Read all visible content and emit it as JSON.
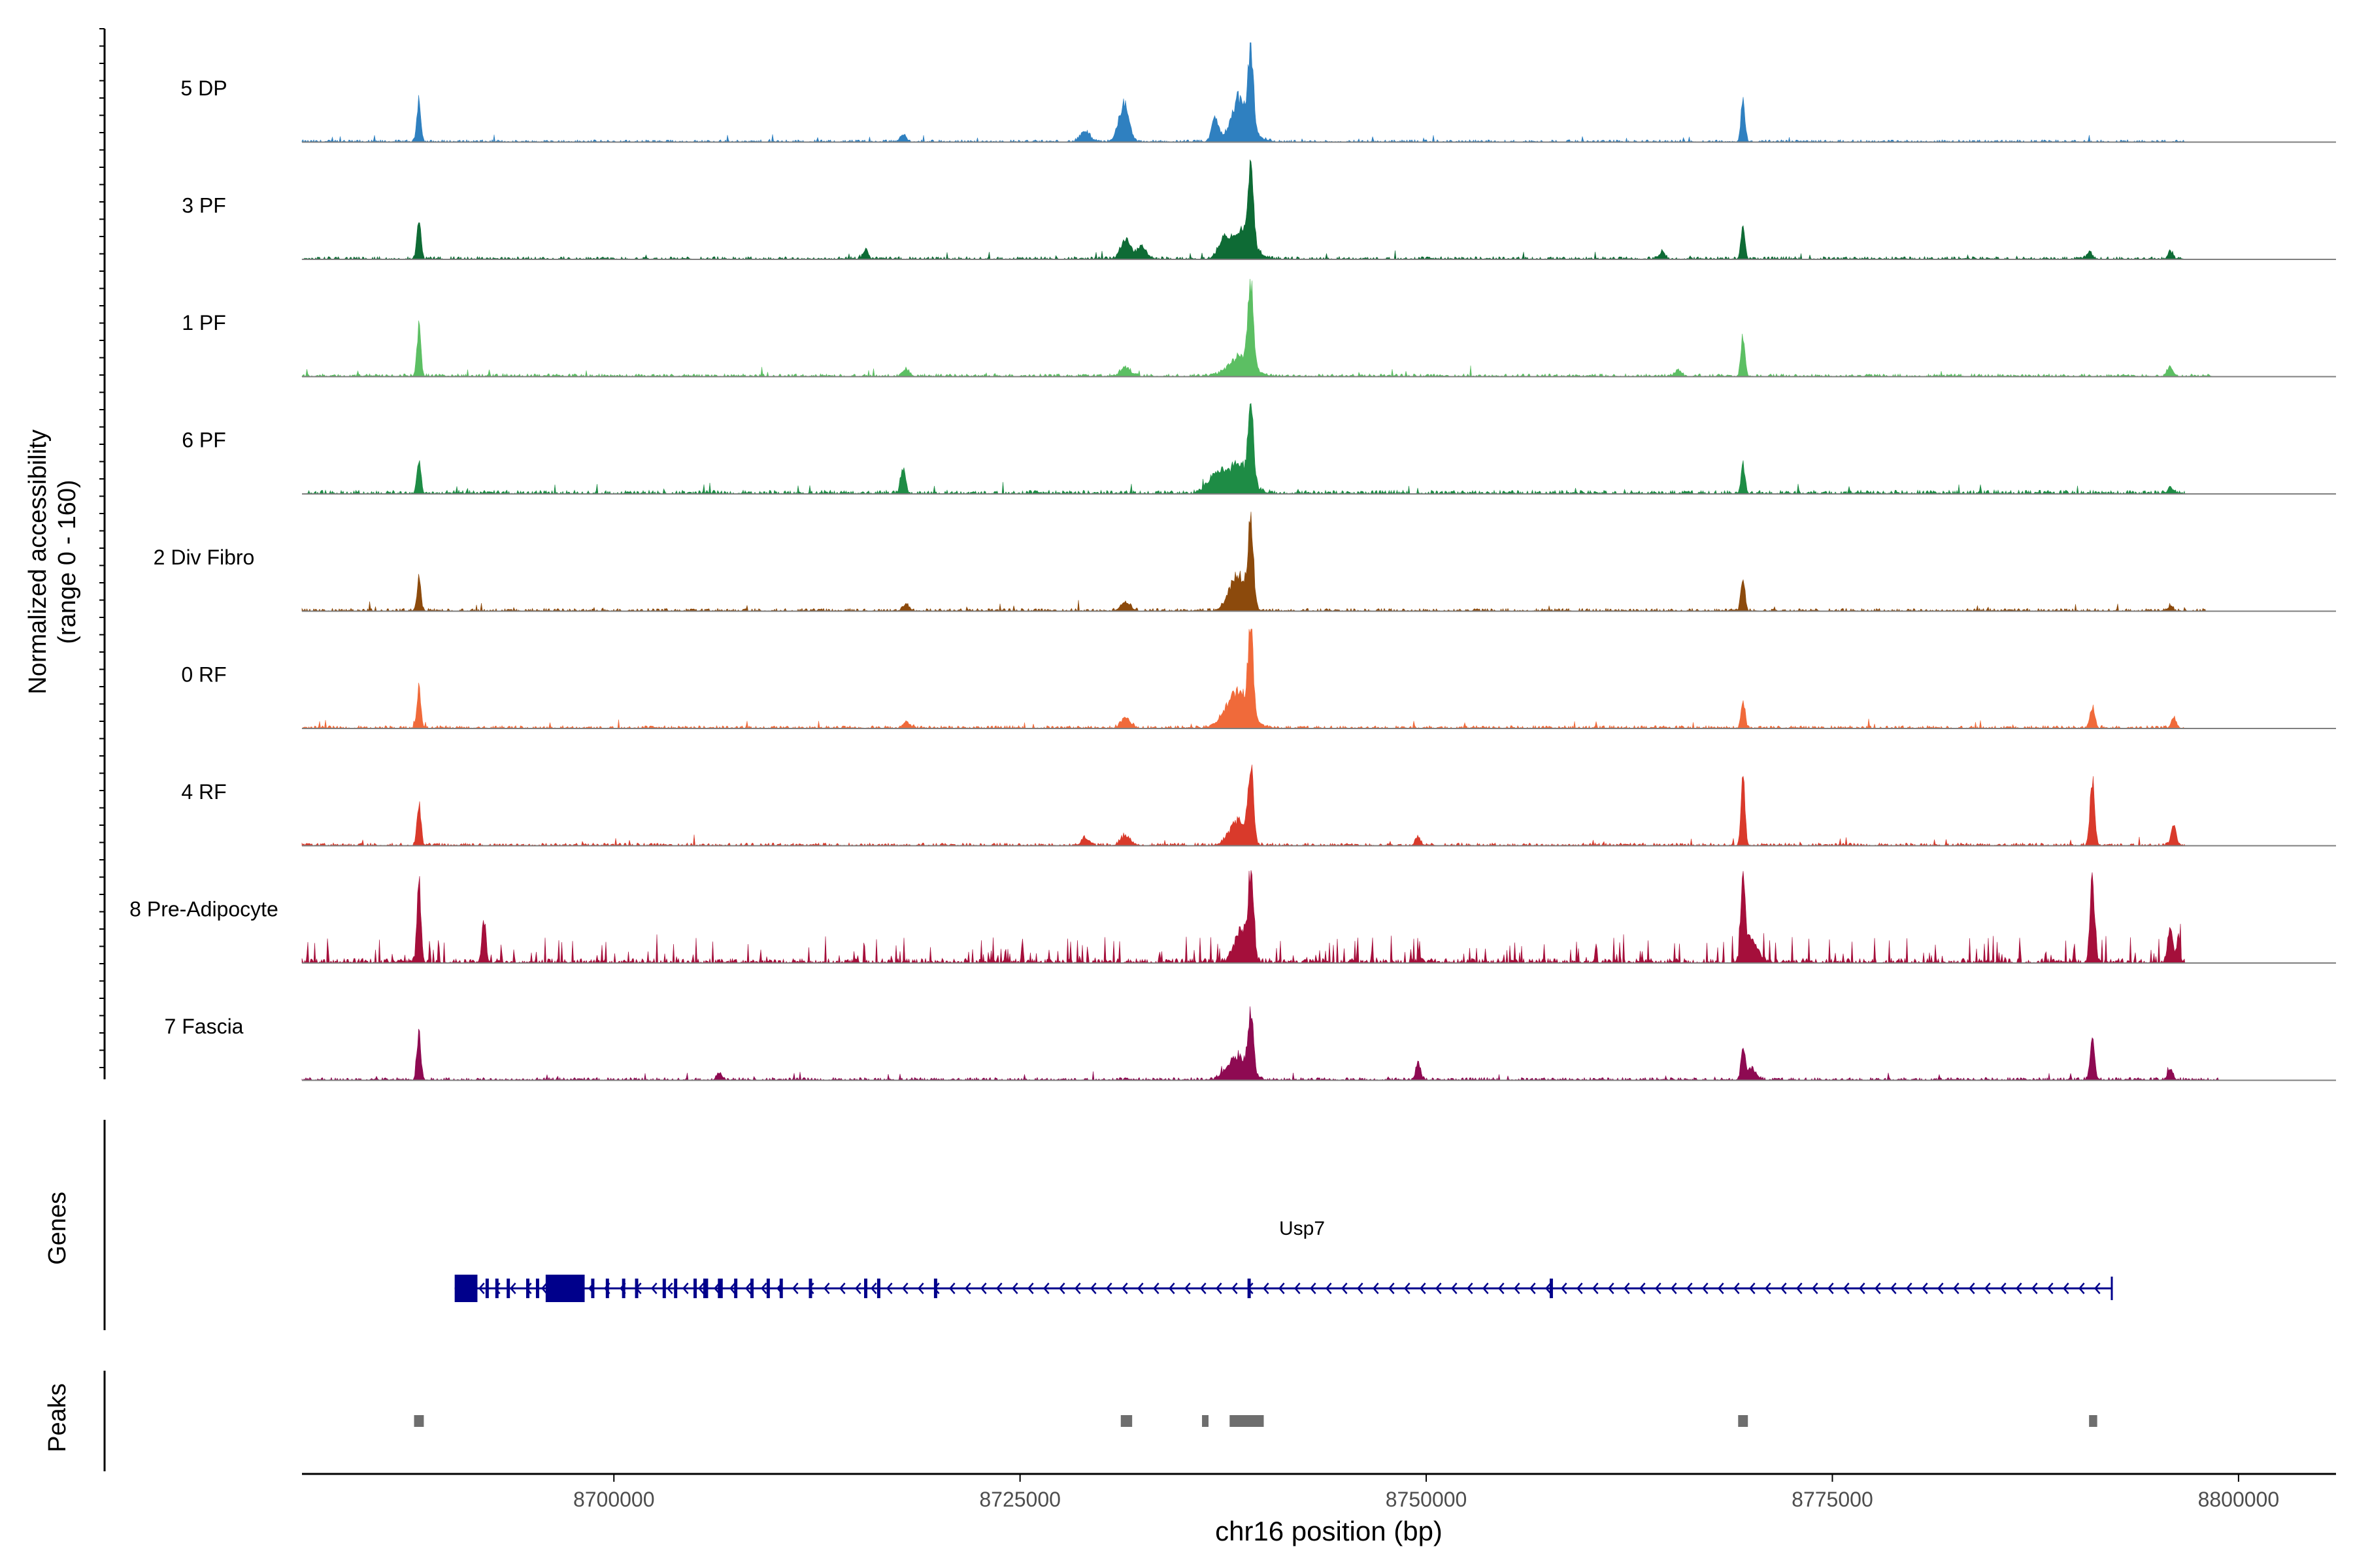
{
  "chart_data": {
    "type": "area",
    "chromosome": "chr16",
    "xlabel": "chr16 position (bp)",
    "ylabel_line1": "Normalized accessibility",
    "ylabel_line2": "(range 0 - 160)",
    "y_range": [
      0,
      160
    ],
    "xlim": [
      8680800,
      8806000
    ],
    "x_ticks": [
      8700000,
      8725000,
      8750000,
      8775000,
      8800000
    ],
    "x_tick_labels": [
      "8700000",
      "8725000",
      "8750000",
      "8775000",
      "8800000"
    ],
    "panel_labels": {
      "genes": "Genes",
      "peaks": "Peaks"
    },
    "tracks": [
      {
        "name": "5 DP",
        "color": "#2F80C0",
        "noise": 0.025,
        "extent": [
          8680800,
          8796700
        ],
        "peaks": [
          [
            8688000,
            0.55,
            120
          ],
          [
            8731500,
            0.35,
            250
          ],
          [
            8731200,
            0.2,
            300
          ],
          [
            8737000,
            0.28,
            200
          ],
          [
            8738400,
            0.25,
            300
          ],
          [
            8739200,
            1.0,
            160
          ],
          [
            8738600,
            0.3,
            700
          ],
          [
            8729000,
            0.12,
            300
          ],
          [
            8769500,
            0.52,
            120
          ],
          [
            8717800,
            0.08,
            200
          ]
        ]
      },
      {
        "name": "3 PF",
        "color": "#0E6B35",
        "noise": 0.03,
        "extent": [
          8680800,
          8796700
        ],
        "peaks": [
          [
            8688000,
            0.45,
            120
          ],
          [
            8731500,
            0.25,
            300
          ],
          [
            8732500,
            0.15,
            300
          ],
          [
            8739200,
            1.0,
            160
          ],
          [
            8738600,
            0.35,
            700
          ],
          [
            8737500,
            0.15,
            300
          ],
          [
            8769500,
            0.4,
            120
          ],
          [
            8715500,
            0.12,
            150
          ],
          [
            8790800,
            0.1,
            150
          ],
          [
            8795800,
            0.1,
            150
          ],
          [
            8764500,
            0.08,
            200
          ]
        ]
      },
      {
        "name": "1 PF",
        "color": "#5CBF63",
        "noise": 0.03,
        "extent": [
          8680800,
          8798500
        ],
        "peaks": [
          [
            8688000,
            0.62,
            120
          ],
          [
            8731500,
            0.12,
            300
          ],
          [
            8739200,
            1.0,
            160
          ],
          [
            8738600,
            0.25,
            700
          ],
          [
            8769500,
            0.5,
            120
          ],
          [
            8718000,
            0.08,
            200
          ],
          [
            8795800,
            0.12,
            150
          ],
          [
            8765500,
            0.08,
            200
          ]
        ]
      },
      {
        "name": "6 PF",
        "color": "#1E8C45",
        "noise": 0.04,
        "extent": [
          8680800,
          8796700
        ],
        "peaks": [
          [
            8688000,
            0.42,
            120
          ],
          [
            8717800,
            0.3,
            150
          ],
          [
            8739200,
            1.0,
            160
          ],
          [
            8738400,
            0.35,
            700
          ],
          [
            8737000,
            0.2,
            500
          ],
          [
            8769500,
            0.35,
            120
          ],
          [
            8795800,
            0.08,
            150
          ]
        ]
      },
      {
        "name": "2 Div Fibro",
        "color": "#8C4A0C",
        "noise": 0.03,
        "extent": [
          8680800,
          8798000
        ],
        "peaks": [
          [
            8688000,
            0.4,
            120
          ],
          [
            8739200,
            1.0,
            160
          ],
          [
            8738400,
            0.45,
            500
          ],
          [
            8769500,
            0.45,
            120
          ],
          [
            8731500,
            0.1,
            300
          ],
          [
            8718000,
            0.08,
            200
          ],
          [
            8795800,
            0.06,
            150
          ]
        ]
      },
      {
        "name": "0 RF",
        "color": "#F06A3A",
        "noise": 0.03,
        "extent": [
          8680800,
          8796700
        ],
        "peaks": [
          [
            8688000,
            0.52,
            120
          ],
          [
            8739200,
            1.0,
            160
          ],
          [
            8738400,
            0.45,
            700
          ],
          [
            8731500,
            0.12,
            300
          ],
          [
            8769500,
            0.35,
            120
          ],
          [
            8791000,
            0.25,
            150
          ],
          [
            8796000,
            0.12,
            150
          ],
          [
            8718000,
            0.08,
            200
          ]
        ]
      },
      {
        "name": "4 RF",
        "color": "#D93A2B",
        "noise": 0.03,
        "extent": [
          8680800,
          8796700
        ],
        "peaks": [
          [
            8688000,
            0.55,
            120
          ],
          [
            8739200,
            0.95,
            160
          ],
          [
            8738400,
            0.3,
            500
          ],
          [
            8731500,
            0.12,
            300
          ],
          [
            8729000,
            0.1,
            200
          ],
          [
            8749500,
            0.1,
            150
          ],
          [
            8769500,
            0.8,
            120
          ],
          [
            8791000,
            0.85,
            140
          ],
          [
            8796000,
            0.25,
            150
          ]
        ]
      },
      {
        "name": "8 Pre-Adipocyte",
        "color": "#A50F3B",
        "noise": 0.05,
        "spiky": true,
        "extent": [
          8680800,
          8796700
        ],
        "peaks": [
          [
            8688000,
            1.0,
            120
          ],
          [
            8692000,
            0.55,
            120
          ],
          [
            8739200,
            1.0,
            160
          ],
          [
            8738600,
            0.4,
            400
          ],
          [
            8769500,
            0.95,
            120
          ],
          [
            8770000,
            0.3,
            400
          ],
          [
            8791000,
            1.0,
            140
          ],
          [
            8795800,
            0.45,
            150
          ],
          [
            8796300,
            0.35,
            100
          ]
        ]
      },
      {
        "name": "7 Fascia",
        "color": "#8E0A52",
        "noise": 0.03,
        "extent": [
          8680800,
          8798800
        ],
        "peaks": [
          [
            8688000,
            0.55,
            120
          ],
          [
            8739200,
            0.75,
            160
          ],
          [
            8738400,
            0.3,
            600
          ],
          [
            8749500,
            0.2,
            150
          ],
          [
            8769500,
            0.4,
            120
          ],
          [
            8770000,
            0.15,
            300
          ],
          [
            8791000,
            0.45,
            140
          ],
          [
            8795800,
            0.15,
            150
          ],
          [
            8706500,
            0.08,
            150
          ]
        ]
      }
    ],
    "gene": {
      "name": "Usp7",
      "strand": "-",
      "start": 8690200,
      "end": 8792200,
      "color": "#00008B",
      "exons": [
        [
          8690200,
          8691600
        ],
        [
          8692100,
          8692300
        ],
        [
          8692700,
          8692900
        ],
        [
          8693400,
          8693600
        ],
        [
          8694600,
          8694800
        ],
        [
          8695200,
          8695400
        ],
        [
          8695800,
          8698200
        ],
        [
          8698600,
          8698800
        ],
        [
          8699500,
          8699700
        ],
        [
          8700500,
          8700700
        ],
        [
          8701300,
          8701500
        ],
        [
          8703000,
          8703200
        ],
        [
          8703700,
          8703900
        ],
        [
          8704900,
          8705100
        ],
        [
          8705500,
          8705800
        ],
        [
          8706400,
          8706700
        ],
        [
          8707400,
          8707600
        ],
        [
          8708400,
          8708600
        ],
        [
          8709400,
          8709600
        ],
        [
          8710200,
          8710400
        ],
        [
          8712000,
          8712200
        ],
        [
          8715400,
          8715600
        ],
        [
          8716200,
          8716400
        ],
        [
          8719700,
          8719900
        ],
        [
          8739000,
          8739200
        ],
        [
          8757600,
          8757800
        ]
      ]
    },
    "peaks_regions": [
      [
        8687700,
        8688300
      ],
      [
        8731200,
        8731900
      ],
      [
        8736200,
        8736600
      ],
      [
        8737900,
        8740000
      ],
      [
        8769200,
        8769800
      ],
      [
        8790800,
        8791300
      ]
    ]
  }
}
